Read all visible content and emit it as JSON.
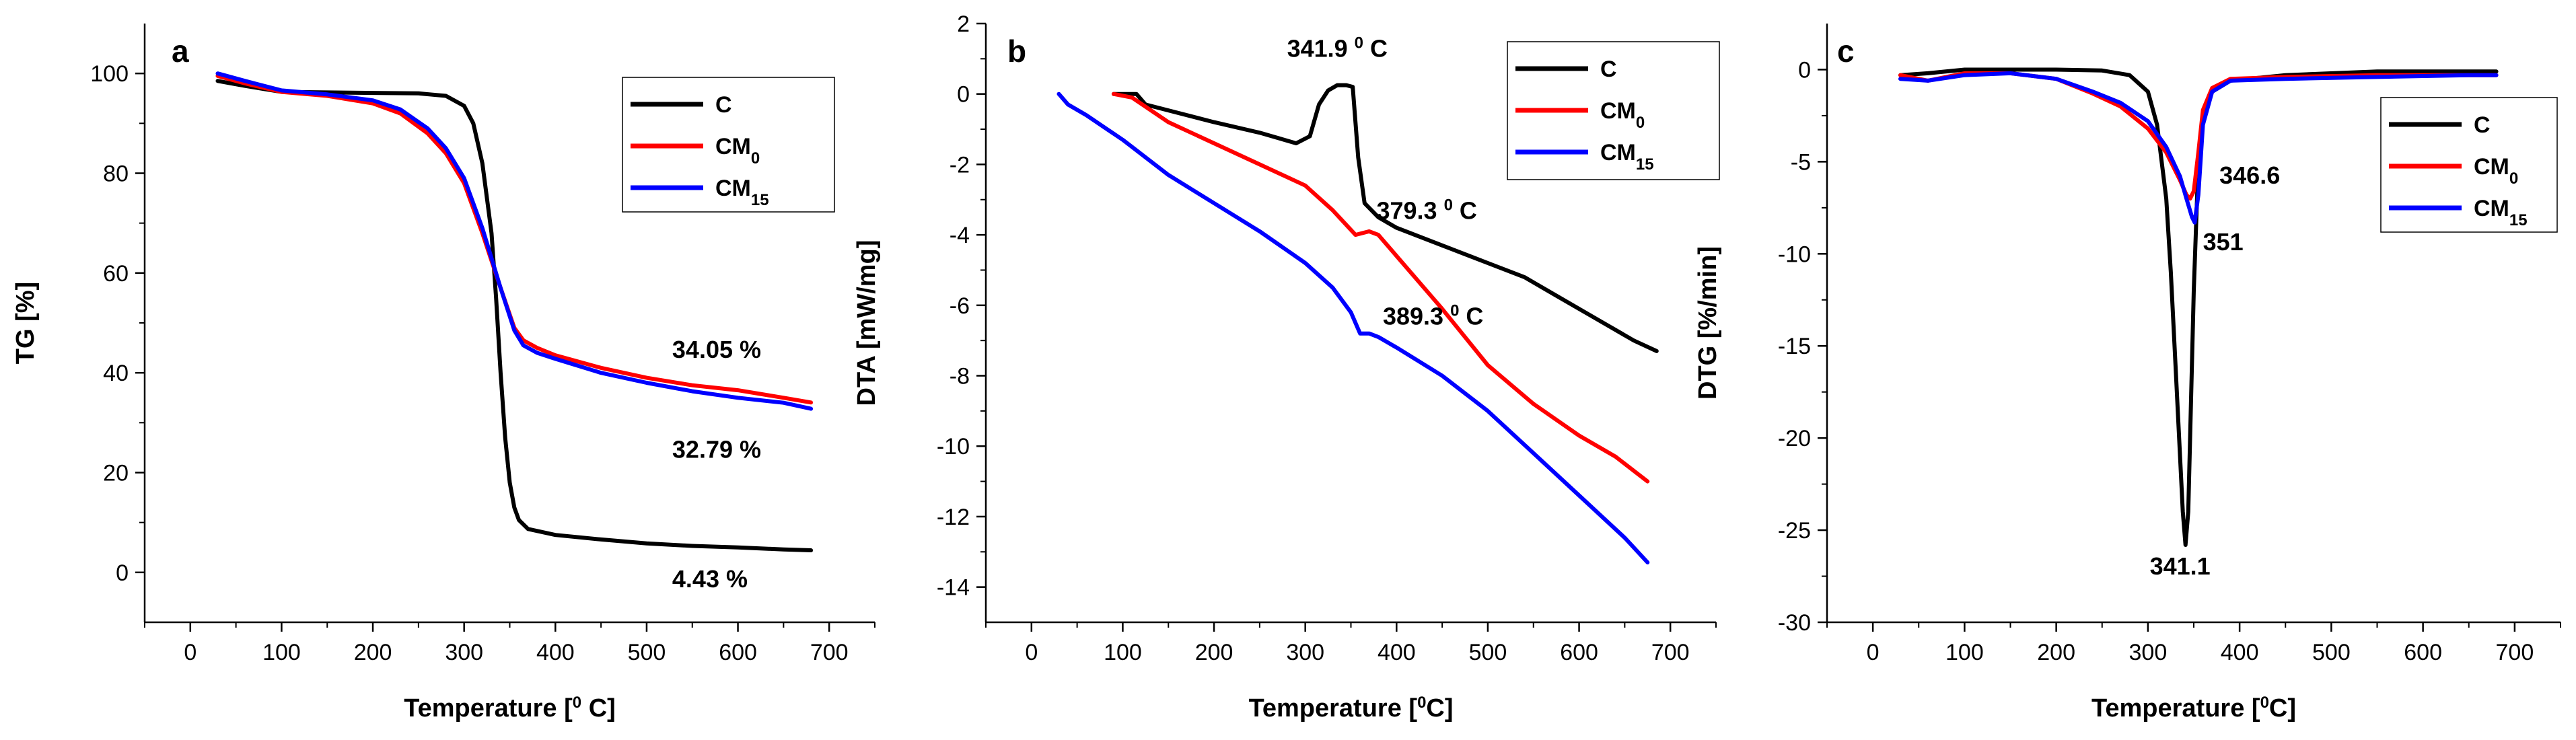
{
  "colors": {
    "C": "#000000",
    "CM0": "#ff0000",
    "CM15": "#0000ff"
  },
  "chart_data": [
    {
      "type": "line",
      "panel": "a",
      "xlabel": {
        "main": "Temperature [",
        "sup": "0",
        "tail": " C]"
      },
      "ylabel": "TG [%]",
      "xlim": [
        -50,
        750
      ],
      "ylim": [
        -10,
        110
      ],
      "xticks": [
        0,
        100,
        200,
        300,
        400,
        500,
        600,
        700
      ],
      "yticks": [
        0,
        20,
        40,
        60,
        80,
        100
      ],
      "legend": [
        {
          "key": "C",
          "base": "C",
          "sub": ""
        },
        {
          "key": "CM0",
          "base": "CM",
          "sub": "0"
        },
        {
          "key": "CM15",
          "base": "CM",
          "sub": "15"
        }
      ],
      "series": [
        {
          "key": "C",
          "x": [
            30,
            60,
            100,
            150,
            200,
            250,
            280,
            300,
            310,
            320,
            330,
            335,
            340,
            345,
            350,
            355,
            360,
            370,
            400,
            450,
            500,
            550,
            600,
            650,
            680
          ],
          "y": [
            98.5,
            97.5,
            96.3,
            96.2,
            96.1,
            96.0,
            95.5,
            93.5,
            90,
            82,
            68,
            55,
            40,
            27,
            18,
            13,
            10.5,
            8.7,
            7.5,
            6.6,
            5.8,
            5.3,
            5.0,
            4.6,
            4.43
          ]
        },
        {
          "key": "CM0",
          "x": [
            30,
            60,
            100,
            150,
            200,
            230,
            260,
            280,
            300,
            320,
            340,
            355,
            365,
            380,
            400,
            450,
            500,
            550,
            600,
            650,
            680
          ],
          "y": [
            99.5,
            98,
            96.3,
            95.5,
            94,
            92,
            88,
            84,
            78,
            68,
            57,
            49,
            46.5,
            45,
            43.5,
            41,
            39,
            37.5,
            36.5,
            35,
            34.05
          ]
        },
        {
          "key": "CM15",
          "x": [
            30,
            60,
            100,
            150,
            200,
            230,
            260,
            280,
            300,
            320,
            340,
            355,
            365,
            380,
            400,
            450,
            500,
            550,
            600,
            650,
            680
          ],
          "y": [
            100,
            98.5,
            96.6,
            95.8,
            94.6,
            92.8,
            89,
            85,
            79,
            69,
            57,
            48.5,
            45.5,
            44,
            42.8,
            40,
            38,
            36.3,
            35,
            34,
            32.79
          ]
        }
      ],
      "annotations": [
        {
          "text": "34.05 %",
          "x": 528,
          "y": 43
        },
        {
          "text": "32.79 %",
          "x": 528,
          "y": 23
        },
        {
          "text": "4.43 %",
          "x": 528,
          "y": -3
        }
      ]
    },
    {
      "type": "line",
      "panel": "b",
      "xlabel": {
        "main": "Temperature [",
        "sup": "0",
        "tail": "C]"
      },
      "ylabel": "DTA [mW/mg]",
      "xlim": [
        -50,
        750
      ],
      "ylim": [
        -15,
        2
      ],
      "xticks": [
        0,
        100,
        200,
        300,
        400,
        500,
        600,
        700
      ],
      "yticks": [
        2,
        0,
        -2,
        -4,
        -6,
        -8,
        -10,
        -12,
        -14
      ],
      "legend": [
        {
          "key": "C",
          "base": "C",
          "sub": ""
        },
        {
          "key": "CM0",
          "base": "CM",
          "sub": "0"
        },
        {
          "key": "CM15",
          "base": "CM",
          "sub": "15"
        }
      ],
      "series": [
        {
          "key": "C",
          "x": [
            90,
            115,
            125,
            200,
            250,
            290,
            305,
            315,
            325,
            335,
            345,
            352,
            358,
            365,
            380,
            400,
            450,
            500,
            540,
            580,
            620,
            660,
            685
          ],
          "y": [
            0,
            0,
            -0.3,
            -0.8,
            -1.1,
            -1.4,
            -1.2,
            -0.3,
            0.1,
            0.25,
            0.25,
            0.2,
            -1.8,
            -3.1,
            -3.5,
            -3.8,
            -4.3,
            -4.8,
            -5.2,
            -5.8,
            -6.4,
            -7.0,
            -7.3
          ]
        },
        {
          "key": "CM0",
          "x": [
            90,
            110,
            150,
            200,
            250,
            300,
            330,
            355,
            370,
            380,
            400,
            450,
            500,
            550,
            600,
            640,
            660,
            675
          ],
          "y": [
            0,
            -0.1,
            -0.8,
            -1.4,
            -2.0,
            -2.6,
            -3.3,
            -4.0,
            -3.9,
            -4.0,
            -4.6,
            -6.1,
            -7.7,
            -8.8,
            -9.7,
            -10.3,
            -10.7,
            -11.0
          ]
        },
        {
          "key": "CM15",
          "x": [
            30,
            40,
            60,
            100,
            150,
            200,
            250,
            300,
            330,
            350,
            360,
            370,
            380,
            400,
            450,
            500,
            550,
            600,
            650,
            675
          ],
          "y": [
            0,
            -0.3,
            -0.6,
            -1.3,
            -2.3,
            -3.1,
            -3.9,
            -4.8,
            -5.5,
            -6.2,
            -6.8,
            -6.8,
            -6.9,
            -7.2,
            -8.0,
            -9.0,
            -10.2,
            -11.4,
            -12.6,
            -13.3
          ]
        }
      ],
      "annotations": [
        {
          "text": "341.9 ",
          "sup": "0",
          "tail": " C",
          "x": 280,
          "y": 1.05
        },
        {
          "text": "379.3 ",
          "sup": "0",
          "tail": " C",
          "x": 378,
          "y": -3.55
        },
        {
          "text": "389.3 ",
          "sup": "0",
          "tail": " C",
          "x": 385,
          "y": -6.55
        }
      ]
    },
    {
      "type": "line",
      "panel": "c",
      "xlabel": {
        "main": "Temperature [",
        "sup": "0",
        "tail": "C]"
      },
      "ylabel": "DTG [%/min]",
      "xlim": [
        -50,
        750
      ],
      "ylim": [
        -30,
        2.5
      ],
      "xticks": [
        0,
        100,
        200,
        300,
        400,
        500,
        600,
        700
      ],
      "yticks": [
        0,
        -5,
        -10,
        -15,
        -20,
        -25,
        -30
      ],
      "legend": [
        {
          "key": "C",
          "base": "C",
          "sub": ""
        },
        {
          "key": "CM0",
          "base": "CM",
          "sub": "0"
        },
        {
          "key": "CM15",
          "base": "CM",
          "sub": "15"
        }
      ],
      "series": [
        {
          "key": "C",
          "x": [
            30,
            60,
            100,
            150,
            200,
            250,
            280,
            300,
            310,
            320,
            325,
            330,
            335,
            338,
            341,
            344,
            347,
            350,
            355,
            360,
            370,
            390,
            450,
            550,
            650,
            680
          ],
          "y": [
            -0.3,
            -0.2,
            0,
            0,
            0,
            -0.05,
            -0.3,
            -1.2,
            -3,
            -7,
            -11,
            -16,
            -21,
            -24,
            -25.8,
            -24,
            -18,
            -12,
            -5,
            -2.5,
            -1.2,
            -0.6,
            -0.3,
            -0.1,
            -0.1,
            -0.1
          ]
        },
        {
          "key": "CM0",
          "x": [
            30,
            60,
            100,
            150,
            200,
            240,
            270,
            300,
            320,
            335,
            342,
            346,
            350,
            355,
            360,
            370,
            390,
            450,
            550,
            650,
            680
          ],
          "y": [
            -0.3,
            -0.6,
            -0.2,
            -0.2,
            -0.5,
            -1.3,
            -2.0,
            -3.2,
            -4.5,
            -6.0,
            -6.8,
            -7.0,
            -6.6,
            -4.5,
            -2.2,
            -1.0,
            -0.5,
            -0.4,
            -0.3,
            -0.3,
            -0.3
          ]
        },
        {
          "key": "CM15",
          "x": [
            30,
            60,
            100,
            150,
            200,
            240,
            270,
            300,
            320,
            335,
            342,
            348,
            351,
            355,
            360,
            370,
            390,
            450,
            550,
            650,
            680
          ],
          "y": [
            -0.5,
            -0.6,
            -0.3,
            -0.2,
            -0.5,
            -1.2,
            -1.8,
            -2.8,
            -4.2,
            -5.8,
            -7.0,
            -8.0,
            -8.3,
            -6.8,
            -3.0,
            -1.2,
            -0.6,
            -0.5,
            -0.4,
            -0.3,
            -0.3
          ]
        }
      ],
      "annotations": [
        {
          "text": "346.6",
          "x": 378,
          "y": -6.2
        },
        {
          "text": "351",
          "x": 360,
          "y": -9.8
        },
        {
          "text": "341.1",
          "x": 302,
          "y": -27.4
        }
      ]
    }
  ]
}
